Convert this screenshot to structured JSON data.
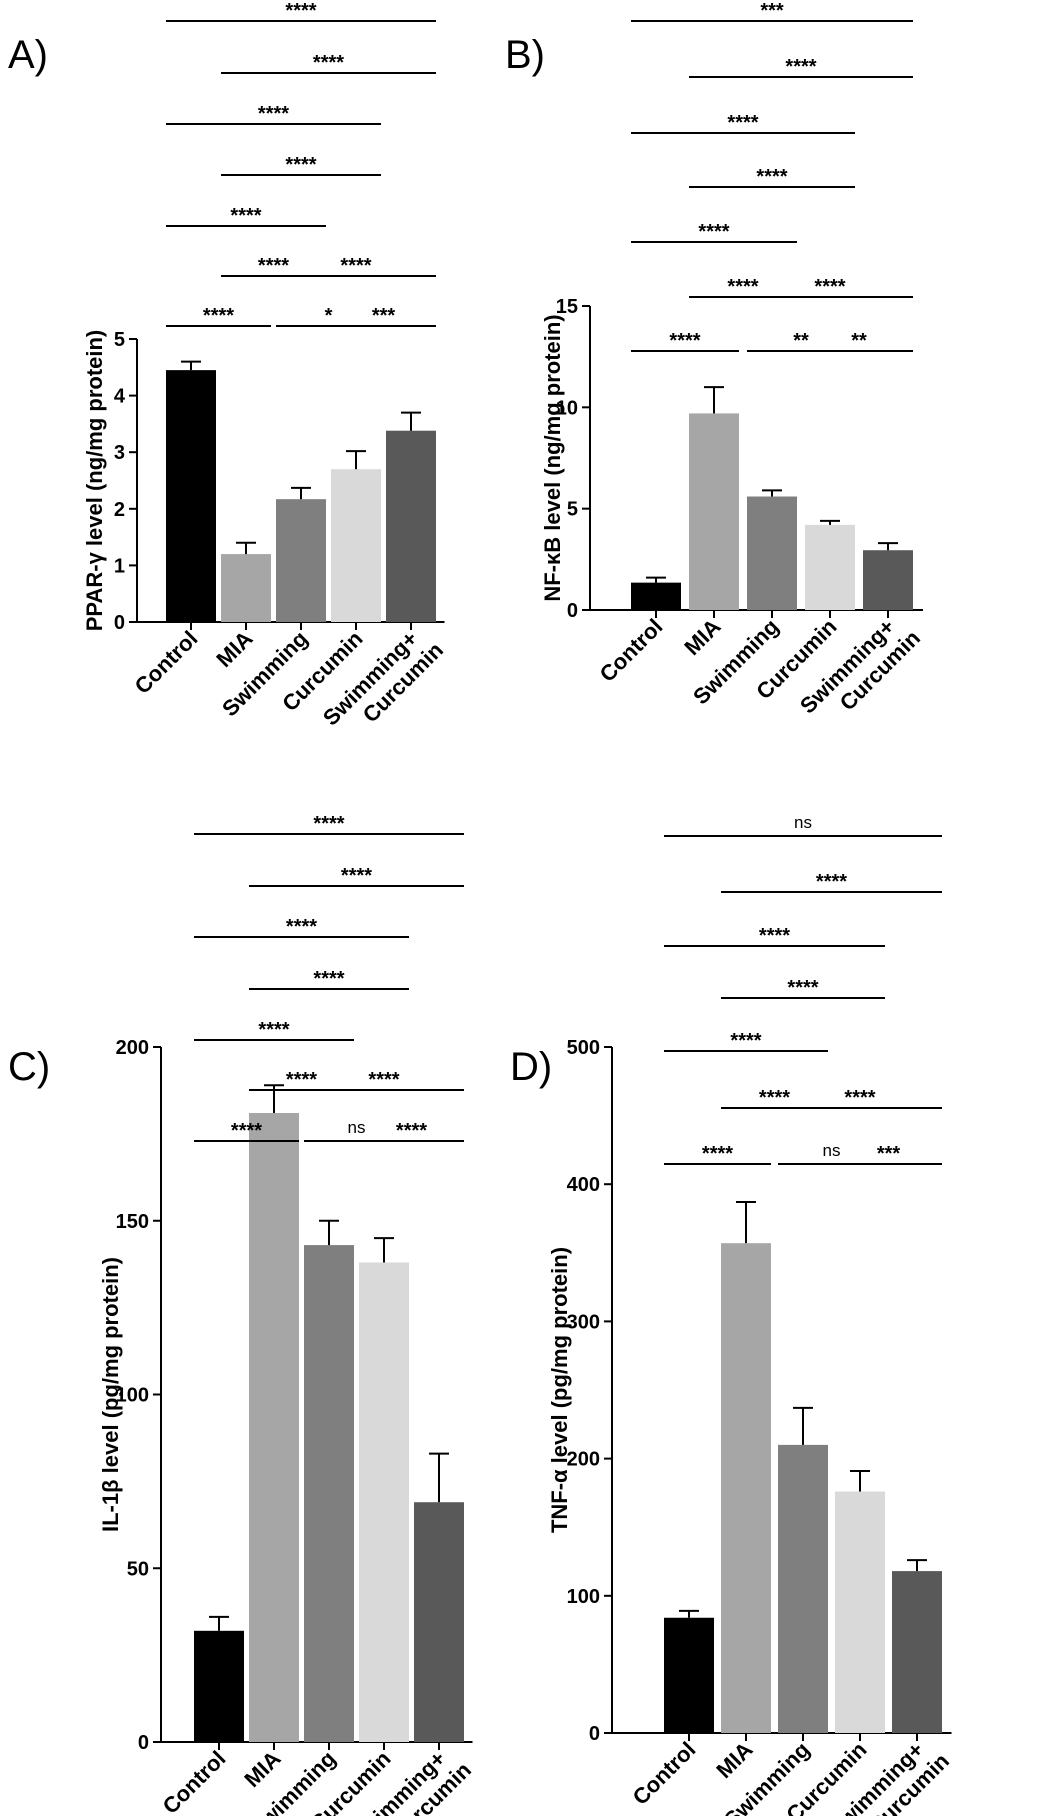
{
  "chart_data": [
    {
      "type": "bar",
      "panel": "A)",
      "title": "",
      "xlabel": "",
      "ylabel": "PPAR-γ level (ng/mg protein)",
      "ylim": [
        0,
        5
      ],
      "yticks": [
        "0",
        "1",
        "2",
        "3",
        "4",
        "5"
      ],
      "categories": [
        "Control",
        "MIA",
        "Swimming",
        "Curcumin",
        "Swimming+\nCurcumin"
      ],
      "values": [
        4.45,
        1.2,
        2.17,
        2.7,
        3.38
      ],
      "errors": [
        0.15,
        0.2,
        0.2,
        0.32,
        0.32
      ],
      "colors": [
        "#000000",
        "#a6a6a6",
        "#7f7f7f",
        "#d9d9d9",
        "#595959"
      ],
      "comparisons": [
        {
          "from": 0,
          "to": 4,
          "label": "****"
        },
        {
          "from": 1,
          "to": 4,
          "label": "****"
        },
        {
          "from": 0,
          "to": 3,
          "label": "****"
        },
        {
          "from": 1,
          "to": 3,
          "label": "****"
        },
        {
          "from": 0,
          "to": 2,
          "label": "****"
        },
        {
          "from": 1,
          "to": 2,
          "label": "****"
        },
        {
          "from": 2,
          "to": 4,
          "label": "****"
        },
        {
          "from": 0,
          "to": 1,
          "label": "****"
        },
        {
          "from": 2,
          "to": 3,
          "label": "*"
        },
        {
          "from": 3,
          "to": 4,
          "label": "***"
        }
      ]
    },
    {
      "type": "bar",
      "panel": "B)",
      "title": "",
      "xlabel": "",
      "ylabel": "NF-κB level (ng/mg protein)",
      "ylim": [
        0,
        15
      ],
      "yticks": [
        "0",
        "5",
        "10",
        "15"
      ],
      "categories": [
        "Control",
        "MIA",
        "Swimming",
        "Curcumin",
        "Swimming+\nCurcumin"
      ],
      "values": [
        1.35,
        9.7,
        5.6,
        4.2,
        2.95
      ],
      "errors": [
        0.25,
        1.3,
        0.3,
        0.2,
        0.35
      ],
      "colors": [
        "#000000",
        "#a6a6a6",
        "#7f7f7f",
        "#d9d9d9",
        "#595959"
      ],
      "comparisons": [
        {
          "from": 0,
          "to": 4,
          "label": "***"
        },
        {
          "from": 1,
          "to": 4,
          "label": "****"
        },
        {
          "from": 0,
          "to": 3,
          "label": "****"
        },
        {
          "from": 1,
          "to": 3,
          "label": "****"
        },
        {
          "from": 0,
          "to": 2,
          "label": "****"
        },
        {
          "from": 1,
          "to": 2,
          "label": "****"
        },
        {
          "from": 2,
          "to": 4,
          "label": "****"
        },
        {
          "from": 0,
          "to": 1,
          "label": "****"
        },
        {
          "from": 2,
          "to": 3,
          "label": "**"
        },
        {
          "from": 3,
          "to": 4,
          "label": "**"
        }
      ]
    },
    {
      "type": "bar",
      "panel": "C)",
      "title": "",
      "xlabel": "",
      "ylabel": "IL-1β level (pg/mg protein)",
      "ylim": [
        0,
        200
      ],
      "yticks": [
        "0",
        "50",
        "100",
        "150",
        "200"
      ],
      "categories": [
        "Control",
        "MIA",
        "Swimming",
        "Curcumin",
        "Swimming+\nCurcumin"
      ],
      "values": [
        32,
        181,
        143,
        138,
        69
      ],
      "errors": [
        4,
        8,
        7,
        7,
        14
      ],
      "colors": [
        "#000000",
        "#a6a6a6",
        "#7f7f7f",
        "#d9d9d9",
        "#595959"
      ],
      "comparisons": [
        {
          "from": 0,
          "to": 4,
          "label": "****"
        },
        {
          "from": 1,
          "to": 4,
          "label": "****"
        },
        {
          "from": 0,
          "to": 3,
          "label": "****"
        },
        {
          "from": 1,
          "to": 3,
          "label": "****"
        },
        {
          "from": 0,
          "to": 2,
          "label": "****"
        },
        {
          "from": 1,
          "to": 2,
          "label": "****"
        },
        {
          "from": 2,
          "to": 4,
          "label": "****"
        },
        {
          "from": 0,
          "to": 1,
          "label": "****"
        },
        {
          "from": 2,
          "to": 3,
          "label": "ns"
        },
        {
          "from": 3,
          "to": 4,
          "label": "****"
        }
      ]
    },
    {
      "type": "bar",
      "panel": "D)",
      "title": "",
      "xlabel": "",
      "ylabel": "TNF-α level (pg/mg protein)",
      "ylim": [
        0,
        500
      ],
      "yticks": [
        "0",
        "100",
        "200",
        "300",
        "400",
        "500"
      ],
      "categories": [
        "Control",
        "MIA",
        "Swimming",
        "Curcumin",
        "Swimming+\nCurcumin"
      ],
      "values": [
        84,
        357,
        210,
        176,
        118
      ],
      "errors": [
        5,
        30,
        27,
        15,
        8
      ],
      "colors": [
        "#000000",
        "#a6a6a6",
        "#7f7f7f",
        "#d9d9d9",
        "#595959"
      ],
      "comparisons": [
        {
          "from": 0,
          "to": 4,
          "label": "ns"
        },
        {
          "from": 1,
          "to": 4,
          "label": "****"
        },
        {
          "from": 0,
          "to": 3,
          "label": "****"
        },
        {
          "from": 1,
          "to": 3,
          "label": "****"
        },
        {
          "from": 0,
          "to": 2,
          "label": "****"
        },
        {
          "from": 1,
          "to": 2,
          "label": "****"
        },
        {
          "from": 2,
          "to": 4,
          "label": "****"
        },
        {
          "from": 0,
          "to": 1,
          "label": "****"
        },
        {
          "from": 2,
          "to": 3,
          "label": "ns"
        },
        {
          "from": 3,
          "to": 4,
          "label": "***"
        }
      ]
    }
  ]
}
